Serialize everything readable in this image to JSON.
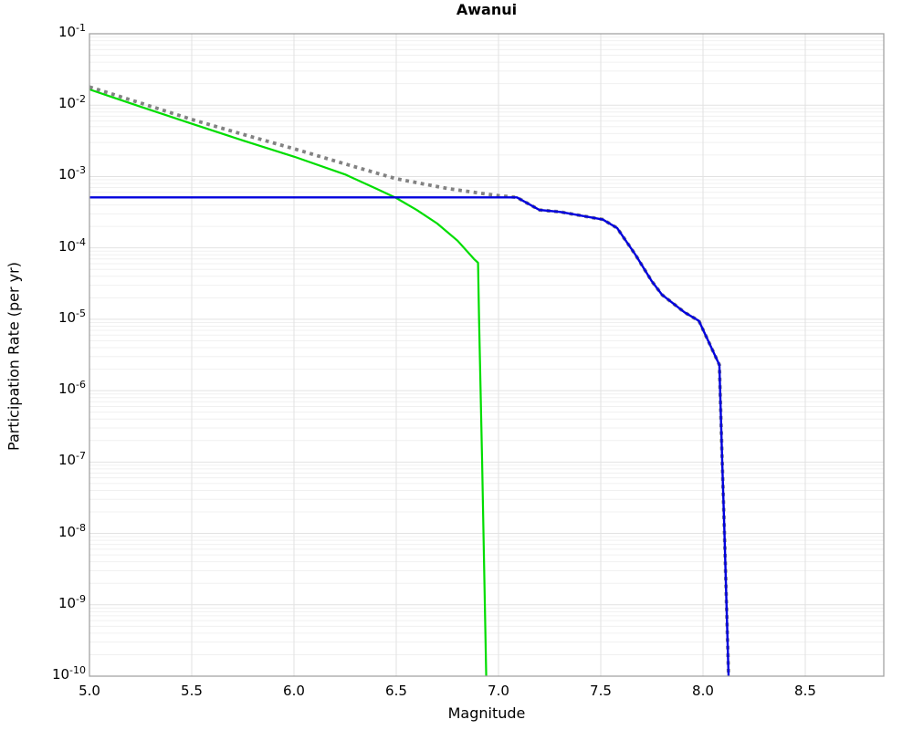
{
  "title": "Awanui",
  "axes": {
    "xlabel": "Magnitude",
    "ylabel": "Participation Rate (per yr)",
    "x_ticks": [
      5.0,
      5.5,
      6.0,
      6.5,
      7.0,
      7.5,
      8.0,
      8.5
    ],
    "x_tick_labels": [
      "5.0",
      "5.5",
      "6.0",
      "6.5",
      "7.0",
      "7.5",
      "8.0",
      "8.5"
    ],
    "y_tick_exponents": [
      -1,
      -2,
      -3,
      -4,
      -5,
      -6,
      -7,
      -8,
      -9,
      -10
    ]
  },
  "colors": {
    "green_line": "#00dd00",
    "blue_line": "#0000dd",
    "dotted_line": "#828282",
    "grid_minor": "#f0f0f0",
    "grid_major": "#e2e2e2",
    "frame": "#a3a3a3",
    "text": "#000000"
  },
  "chart_data": {
    "type": "line",
    "title": "Awanui",
    "xlabel": "Magnitude",
    "ylabel": "Participation Rate (per yr)",
    "xlim": [
      5.0,
      8.884
    ],
    "ylim": [
      1e-10,
      0.1
    ],
    "x_scale": "linear",
    "y_scale": "log",
    "grid": true,
    "legend_position": "none",
    "series": [
      {
        "name": "green-solid-curve",
        "style": "solid",
        "color": "#00dd00",
        "width": 2.2,
        "points": [
          [
            5.0,
            0.0166
          ],
          [
            5.25,
            0.0095
          ],
          [
            5.5,
            0.0055
          ],
          [
            5.75,
            0.0032
          ],
          [
            6.0,
            0.0019
          ],
          [
            6.25,
            0.00107
          ],
          [
            6.4,
            0.00068
          ],
          [
            6.5,
            0.0005
          ],
          [
            6.6,
            0.00034
          ],
          [
            6.7,
            0.00022
          ],
          [
            6.8,
            0.000126
          ],
          [
            6.88,
            7e-05
          ],
          [
            6.9,
            6.2e-05
          ],
          [
            6.905,
            1e-05
          ],
          [
            6.92,
            1e-07
          ],
          [
            6.94,
            1e-10
          ]
        ]
      },
      {
        "name": "gray-dotted-curve",
        "style": "dotted",
        "color": "#828282",
        "width": 3.8,
        "points": [
          [
            5.0,
            0.018
          ],
          [
            5.25,
            0.0107
          ],
          [
            5.5,
            0.0063
          ],
          [
            5.75,
            0.0039
          ],
          [
            6.0,
            0.00245
          ],
          [
            6.25,
            0.0015
          ],
          [
            6.5,
            0.00093
          ],
          [
            6.75,
            0.00068
          ],
          [
            6.9,
            0.00059
          ],
          [
            7.0,
            0.00054
          ],
          [
            7.09,
            0.00051
          ],
          [
            7.2,
            0.00034
          ],
          [
            7.3,
            0.00032
          ],
          [
            7.51,
            0.00025
          ],
          [
            7.58,
            0.00019
          ],
          [
            7.67,
            8e-05
          ],
          [
            7.75,
            3.4e-05
          ],
          [
            7.8,
            2.2e-05
          ],
          [
            7.91,
            1.25e-05
          ],
          [
            7.98,
            9.5e-06
          ],
          [
            8.08,
            2.3e-06
          ],
          [
            8.094,
            1e-07
          ],
          [
            8.105,
            1e-08
          ],
          [
            8.115,
            1e-09
          ],
          [
            8.125,
            1e-10
          ]
        ]
      },
      {
        "name": "blue-solid-curve",
        "style": "solid",
        "color": "#0000dd",
        "width": 2.4,
        "points": [
          [
            5.0,
            0.00051
          ],
          [
            7.09,
            0.00051
          ],
          [
            7.2,
            0.00034
          ],
          [
            7.3,
            0.00032
          ],
          [
            7.51,
            0.00025
          ],
          [
            7.58,
            0.00019
          ],
          [
            7.67,
            8e-05
          ],
          [
            7.75,
            3.4e-05
          ],
          [
            7.8,
            2.2e-05
          ],
          [
            7.91,
            1.25e-05
          ],
          [
            7.98,
            9.5e-06
          ],
          [
            8.08,
            2.3e-06
          ],
          [
            8.094,
            1e-07
          ],
          [
            8.105,
            1e-08
          ],
          [
            8.115,
            1e-09
          ],
          [
            8.125,
            1e-10
          ]
        ]
      }
    ]
  }
}
